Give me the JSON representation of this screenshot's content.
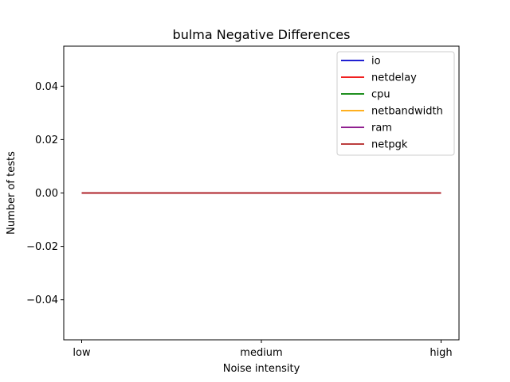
{
  "chart_data": {
    "type": "line",
    "title": "bulma Negative Differences",
    "xlabel": "Noise intensity",
    "ylabel": "Number of tests",
    "categories": [
      "low",
      "medium",
      "high"
    ],
    "ylim": [
      -0.055,
      0.055
    ],
    "yticks": [
      -0.04,
      -0.02,
      0.0,
      0.02,
      0.04
    ],
    "ytick_labels": [
      "−0.04",
      "−0.02",
      "0.00",
      "0.02",
      "0.04"
    ],
    "grid": false,
    "legend_position": "top-right",
    "series": [
      {
        "name": "io",
        "color": "#0000cc",
        "values": [
          0,
          0,
          0
        ]
      },
      {
        "name": "netdelay",
        "color": "#ee0000",
        "values": [
          0,
          0,
          0
        ]
      },
      {
        "name": "cpu",
        "color": "#008000",
        "values": [
          0,
          0,
          0
        ]
      },
      {
        "name": "netbandwidth",
        "color": "#ffa500",
        "values": [
          0,
          0,
          0
        ]
      },
      {
        "name": "ram",
        "color": "#800080",
        "values": [
          0,
          0,
          0
        ]
      },
      {
        "name": "netpgk",
        "color": "#b22222",
        "values": [
          0,
          0,
          0
        ]
      }
    ]
  }
}
